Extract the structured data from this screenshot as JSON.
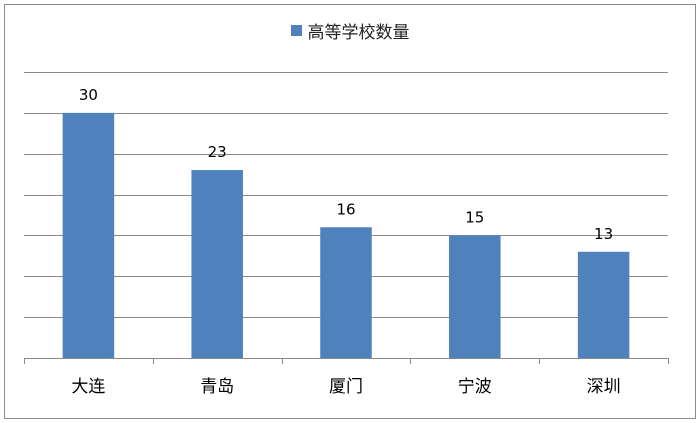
{
  "chart_data": {
    "type": "bar",
    "categories": [
      "大连",
      "青岛",
      "厦门",
      "宁波",
      "深圳"
    ],
    "series": [
      {
        "name": "高等学校数量",
        "values": [
          30,
          23,
          16,
          15,
          13
        ],
        "color": "#4f81bd"
      }
    ],
    "title": "",
    "xlabel": "",
    "ylabel": "",
    "ylim": [
      0,
      35
    ],
    "y_grid_step": 5,
    "grid": true,
    "legend_position": "top-center",
    "data_labels": true
  }
}
